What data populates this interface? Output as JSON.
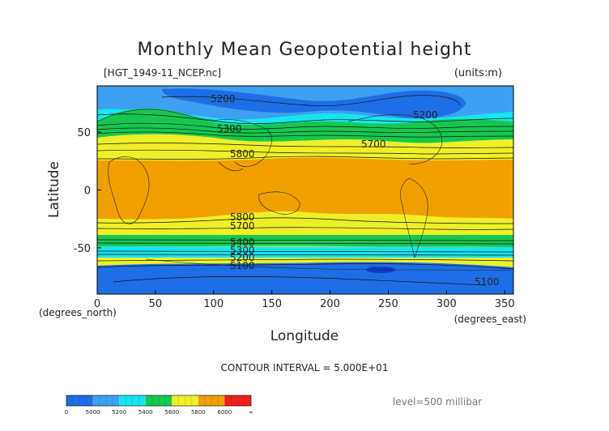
{
  "chart_data": {
    "type": "heatmap",
    "title": "Monthly Mean Geopotential height",
    "source_file": "[HGT_1949-11_NCEP.nc]",
    "units": "(units:m)",
    "xlabel": "Longitude",
    "ylabel": "Latitude",
    "x_unit_note": "(degrees_east)",
    "y_unit_note": "(degrees_north)",
    "xlim": [
      0,
      357.5
    ],
    "ylim": [
      -90,
      90
    ],
    "x_ticks": [
      0,
      50,
      100,
      150,
      200,
      250,
      300,
      350
    ],
    "y_ticks": [
      50,
      0,
      -50
    ],
    "contour_interval": "CONTOUR INTERVAL = 5.000E+01",
    "level": "level=500 millibar",
    "contour_labels": [
      "5200",
      "5200",
      "5300",
      "5700",
      "5800",
      "5800",
      "5700",
      "5400",
      "5300",
      "5200",
      "5100",
      "5100"
    ],
    "colorbar": {
      "tick_labels": [
        "0",
        "5000",
        "5200",
        "5400",
        "5600",
        "5800",
        "6000",
        "∞"
      ],
      "colors": [
        "#1e6ee6",
        "#3da0f0",
        "#16e6f0",
        "#16c850",
        "#f0f028",
        "#f0a000",
        "#f02020"
      ]
    },
    "band_colors": {
      "c5000": "#1e6ee6",
      "c5200": "#3da0f0",
      "c5400": "#16e6f0",
      "c5600": "#16c850",
      "c5800": "#f0f028",
      "c6000": "#f0a000",
      "c_high": "#f02020"
    }
  }
}
